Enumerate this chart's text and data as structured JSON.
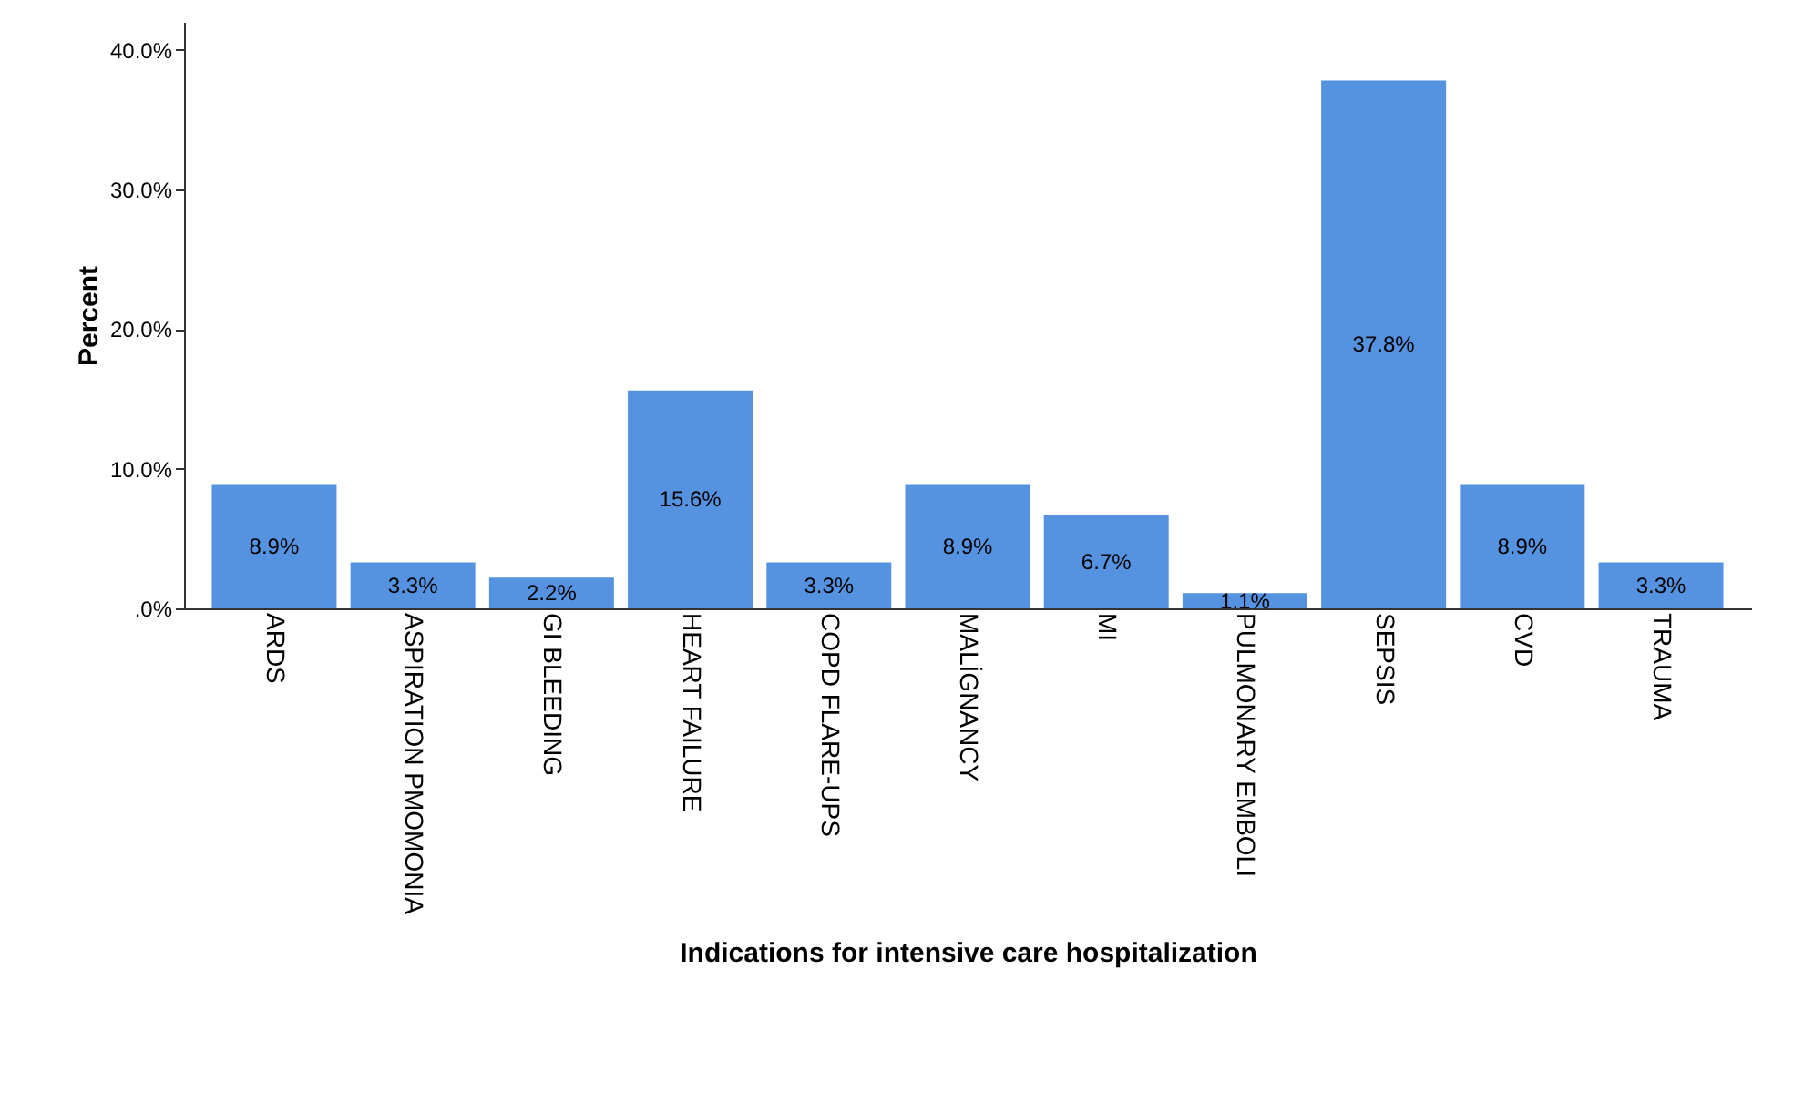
{
  "chart_data": {
    "type": "bar",
    "xlabel": "Indications for intensive care hospitalization",
    "ylabel": "Percent",
    "categories": [
      "ARDS",
      "ASPIRATION PMOMONIA",
      "GI BLEEDING",
      "HEART FAILURE",
      "COPD FLARE-UPS",
      "MALİGNANCY",
      "MI",
      "PULMONARY EMBOLI",
      "SEPSIS",
      "CVD",
      "TRAUMA"
    ],
    "values": [
      8.9,
      3.3,
      2.2,
      15.6,
      3.3,
      8.9,
      6.7,
      1.1,
      37.8,
      8.9,
      3.3
    ],
    "value_labels": [
      "8.9%",
      "3.3%",
      "2.2%",
      "15.6%",
      "3.3%",
      "8.9%",
      "6.7%",
      "1.1%",
      "37.8%",
      "8.9%",
      "3.3%"
    ],
    "color": "#5592e0",
    "ylim": [
      0,
      42
    ],
    "yticks": [
      {
        "value": 0,
        "label": ".0%"
      },
      {
        "value": 10,
        "label": "10.0%"
      },
      {
        "value": 20,
        "label": "20.0%"
      },
      {
        "value": 30,
        "label": "30.0%"
      },
      {
        "value": 40,
        "label": "40.0%"
      }
    ],
    "grid": false
  }
}
